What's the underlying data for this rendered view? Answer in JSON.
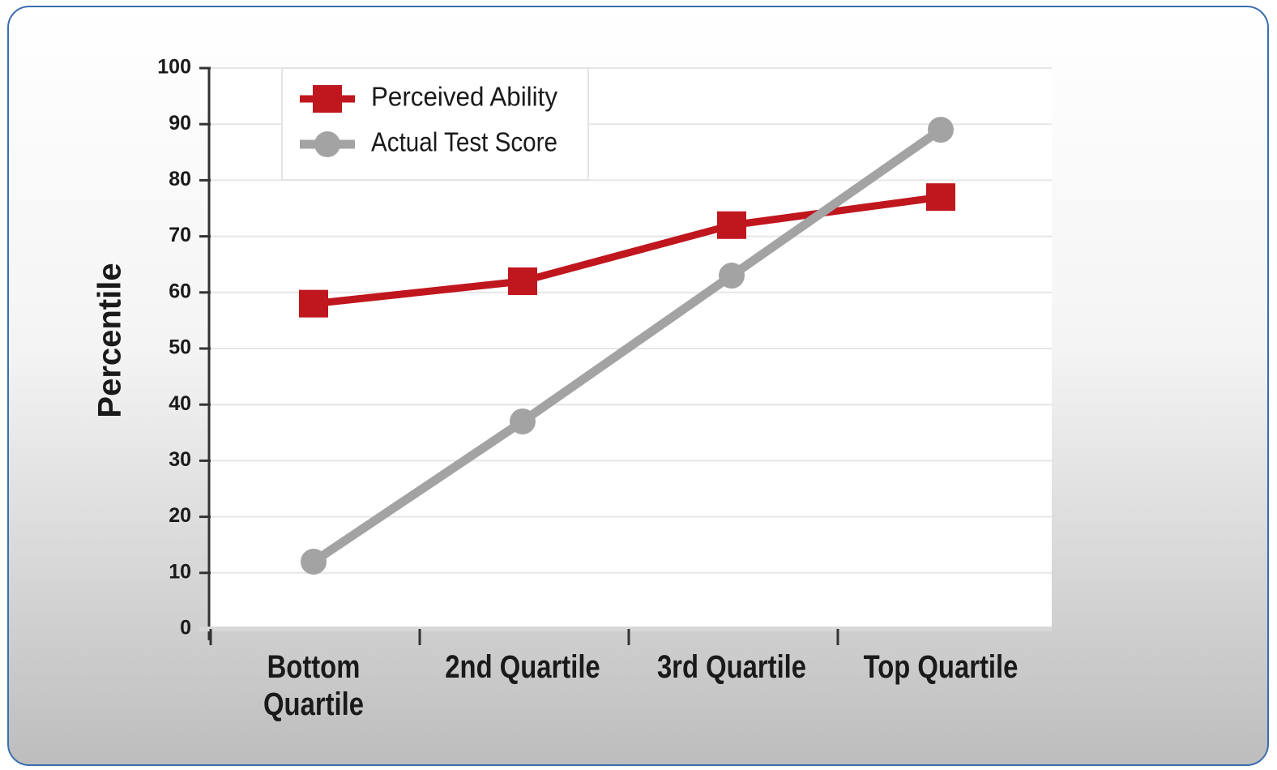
{
  "chart_data": {
    "type": "line",
    "y_label": "Percentile",
    "categories": [
      "Bottom Quartile",
      "2nd Quartile",
      "3rd Quartile",
      "Top Quartile"
    ],
    "series": [
      {
        "name": "Perceived Ability",
        "color": "#c0161e",
        "marker": "square",
        "values": [
          58,
          62,
          72,
          77
        ]
      },
      {
        "name": "Actual Test Score",
        "color": "#a3a3a3",
        "marker": "circle",
        "values": [
          12,
          37,
          63,
          89
        ]
      }
    ],
    "ylim": [
      0,
      100
    ],
    "yticks": [
      0,
      10,
      20,
      30,
      40,
      50,
      60,
      70,
      80,
      90,
      100
    ],
    "grid": true,
    "legend": "top-left"
  }
}
